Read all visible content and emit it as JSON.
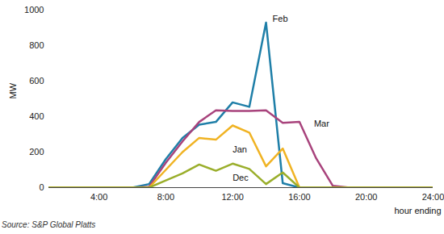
{
  "chart_data": {
    "type": "line",
    "x_label": "hour ending",
    "y_label": "MW",
    "source": "Source: S&P Global Platts",
    "x": [
      1,
      2,
      3,
      4,
      5,
      6,
      7,
      8,
      9,
      10,
      11,
      12,
      13,
      14,
      15,
      16,
      17,
      18,
      19,
      20,
      21,
      22,
      23,
      24
    ],
    "series": [
      {
        "name": "Feb",
        "color": "#1f7fa8",
        "values": [
          0,
          0,
          0,
          0,
          0,
          0,
          20,
          160,
          280,
          355,
          370,
          480,
          455,
          930,
          25,
          0,
          0,
          0,
          0,
          0,
          0,
          0,
          0,
          0
        ]
      },
      {
        "name": "Mar",
        "color": "#a8437c",
        "values": [
          0,
          0,
          0,
          0,
          0,
          0,
          5,
          140,
          260,
          370,
          435,
          432,
          432,
          435,
          365,
          370,
          165,
          10,
          0,
          0,
          0,
          0,
          0,
          0
        ]
      },
      {
        "name": "Jan",
        "color": "#f0b323",
        "values": [
          0,
          0,
          0,
          0,
          0,
          0,
          0,
          100,
          200,
          280,
          270,
          350,
          310,
          120,
          220,
          0,
          0,
          0,
          0,
          0,
          0,
          0,
          0,
          0
        ]
      },
      {
        "name": "Dec",
        "color": "#9aae2b",
        "values": [
          0,
          0,
          0,
          0,
          0,
          0,
          0,
          40,
          80,
          130,
          95,
          135,
          105,
          20,
          85,
          0,
          0,
          0,
          0,
          0,
          0,
          0,
          0,
          0
        ]
      }
    ],
    "xlim": [
      1,
      24
    ],
    "xticks": [
      {
        "value": 4,
        "label": "4:00"
      },
      {
        "value": 8,
        "label": "8:00"
      },
      {
        "value": 12,
        "label": "12:00"
      },
      {
        "value": 16,
        "label": "16:00"
      },
      {
        "value": 20,
        "label": "20:00"
      },
      {
        "value": 24,
        "label": "24:00"
      }
    ],
    "ylim": [
      0,
      1000
    ],
    "yticks": [
      0,
      200,
      400,
      600,
      800,
      1000
    ],
    "grid": false
  }
}
